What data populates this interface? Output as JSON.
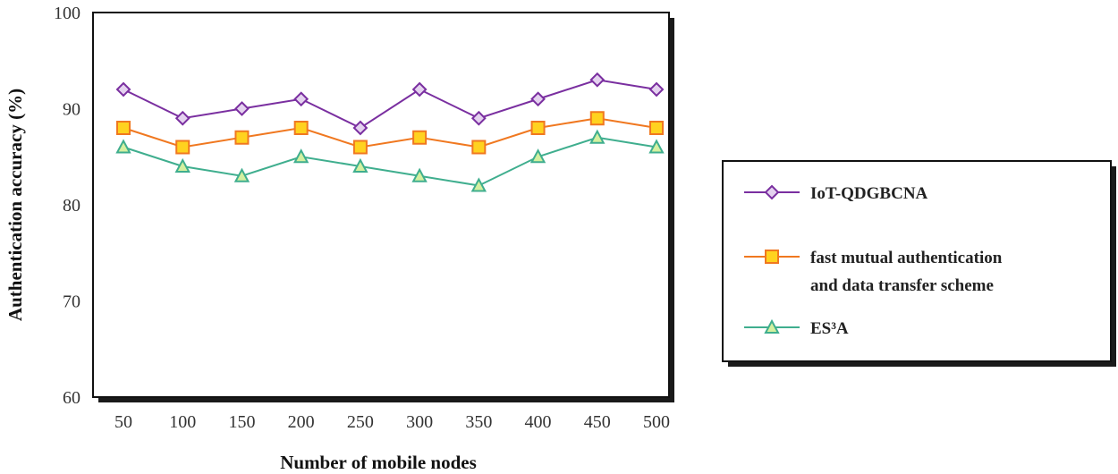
{
  "chart_data": {
    "type": "line",
    "title": "",
    "xlabel": "Number of mobile nodes",
    "ylabel": "Authentication accuracy (%)",
    "ylim": [
      60,
      100
    ],
    "yticks": [
      60,
      70,
      80,
      90,
      100
    ],
    "grid": false,
    "legend_position": "right",
    "categories": [
      "50",
      "100",
      "150",
      "200",
      "250",
      "300",
      "350",
      "400",
      "450",
      "500"
    ],
    "series": [
      {
        "name": "IoT-QDGBCNA",
        "label_lines": [
          "IoT-QDGBCNA"
        ],
        "color": "#7a2fa0",
        "marker": "diamond",
        "marker_fill": "#e4d2ef",
        "values": [
          92,
          89,
          90,
          91,
          88,
          92,
          89,
          91,
          93,
          92
        ]
      },
      {
        "name": "fast mutual authentication and data transfer scheme",
        "label_lines": [
          "fast mutual authentication",
          "and data transfer scheme"
        ],
        "color": "#f07820",
        "marker": "square",
        "marker_fill": "#ffd21f",
        "values": [
          88,
          86,
          87,
          88,
          86,
          87,
          86,
          88,
          89,
          88
        ]
      },
      {
        "name": "ES³A",
        "label_lines": [
          "ES³A"
        ],
        "color": "#3fae8e",
        "marker": "triangle",
        "marker_fill": "#d4f0a0",
        "values": [
          86,
          84,
          83,
          85,
          84,
          83,
          82,
          85,
          87,
          86
        ]
      }
    ]
  }
}
